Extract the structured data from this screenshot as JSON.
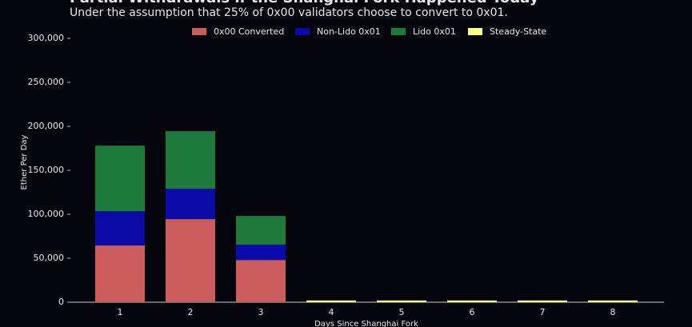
{
  "chart_data": {
    "type": "stacked_bar",
    "title": "Partial Withdrawals if the Shanghai Fork Happened Today",
    "subtitle": "Under the assumption that 25% of 0x00 validators choose to convert to 0x01.",
    "x_label": "Days Since Shanghai Fork",
    "y_label": "Ether Per Day",
    "categories": [
      "1",
      "2",
      "3",
      "4",
      "5",
      "6",
      "7",
      "8"
    ],
    "series": [
      {
        "name": "0x00 Converted",
        "color": "#cd5c5c",
        "values": [
          64500,
          94500,
          48000,
          0,
          0,
          0,
          0,
          0
        ]
      },
      {
        "name": "Non-Lido 0x01",
        "color": "#0a0aa8",
        "values": [
          39000,
          34500,
          17500,
          0,
          0,
          0,
          0,
          0
        ]
      },
      {
        "name": "Lido 0x01",
        "color": "#1e7a3a",
        "values": [
          74500,
          65500,
          32500,
          0,
          0,
          0,
          0,
          0
        ]
      },
      {
        "name": "Steady-State",
        "color": "#ffff80",
        "values": [
          0,
          0,
          0,
          2000,
          2000,
          2000,
          2000,
          2000
        ]
      }
    ],
    "ylim": [
      0,
      300000
    ],
    "yticks": [
      0,
      {
        "value": 50000,
        "label": "50,000"
      },
      {
        "value": 100000,
        "label": "100,000"
      },
      {
        "value": 150000,
        "label": "150,000"
      },
      {
        "value": 200000,
        "label": "200,000"
      },
      {
        "value": 250000,
        "label": "250,000"
      },
      {
        "value": 300000,
        "label": "300,000"
      }
    ],
    "legend": "top"
  }
}
